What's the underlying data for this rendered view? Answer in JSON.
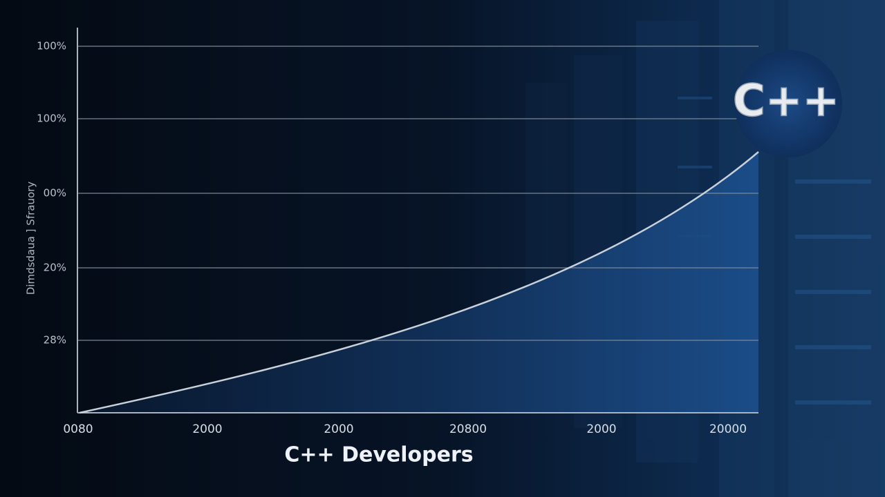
{
  "header": {
    "logo": "C++",
    "title": "C++ Developers"
  },
  "axis": {
    "y_label": "Dimdsdaua ] Sfrauory",
    "y_labels": [
      "100%",
      "100%",
      "00%",
      "20%",
      "28%"
    ],
    "x_labels": [
      "0080",
      "2000",
      "2000",
      "20800",
      "2000",
      "20000"
    ]
  }
}
